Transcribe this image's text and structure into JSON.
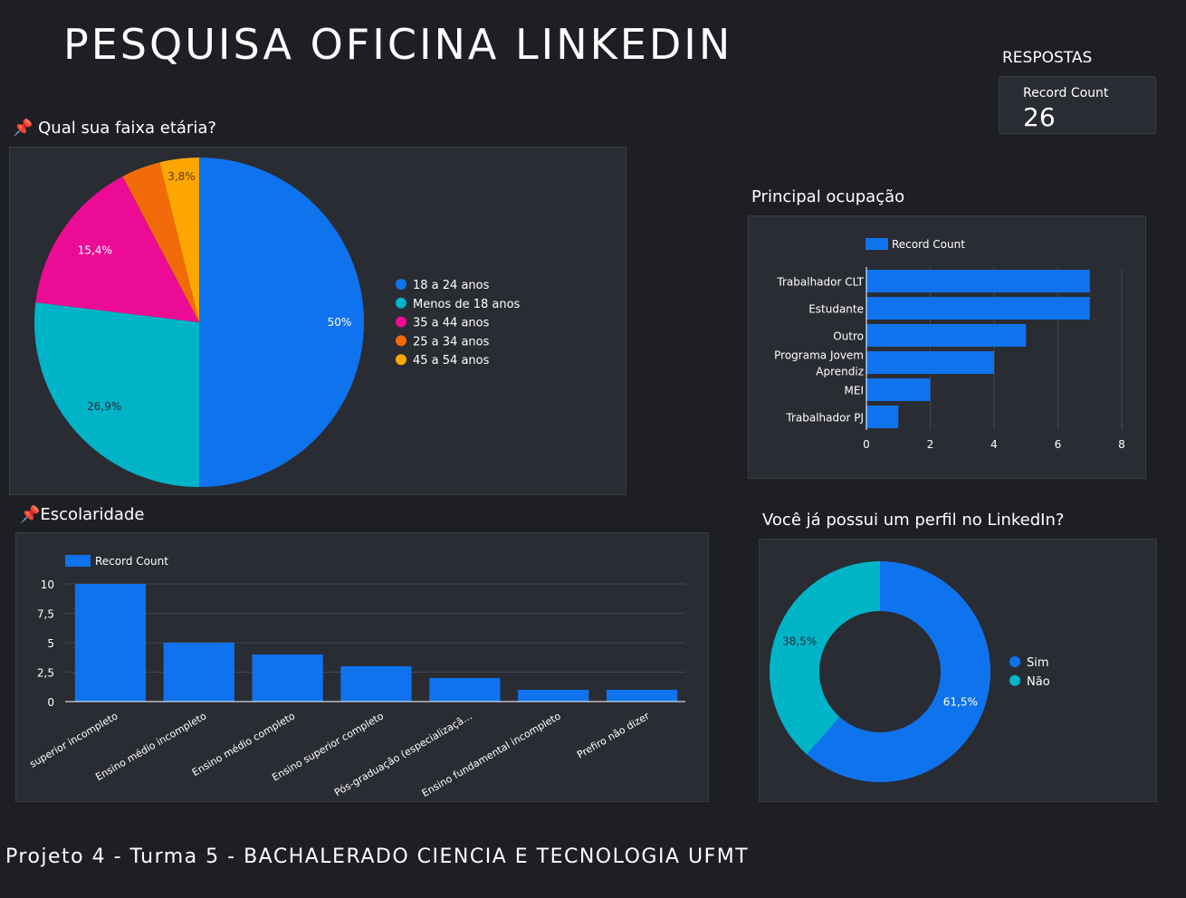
{
  "header": {
    "title": "PESQUISA OFICINA LINKEDIN"
  },
  "kpi": {
    "section_label": "RESPOSTAS",
    "metric_label": "Record Count",
    "value": "26"
  },
  "footer": {
    "text": "Projeto 4 - Turma 5  - BACHALERADO CIENCIA E TECNOLOGIA UFMT"
  },
  "chart_data": [
    {
      "id": "faixa-etaria",
      "type": "pie",
      "title": "📌 Qual sua faixa etária?",
      "legend_position": "right",
      "slices": [
        {
          "label": "18 a 24 anos",
          "value": 13,
          "pct_label": "50%",
          "color": "#0f73ee"
        },
        {
          "label": "Menos de 18 anos",
          "value": 7,
          "pct_label": "26,9%",
          "color": "#00b4c8"
        },
        {
          "label": "35 a 44 anos",
          "value": 4,
          "pct_label": "15,4%",
          "color": "#ec0b94"
        },
        {
          "label": "25 a 34 anos",
          "value": 1,
          "pct_label": "",
          "color": "#f06b08"
        },
        {
          "label": "45 a 54 anos",
          "value": 1,
          "pct_label": "3,8%",
          "color": "#ffa600"
        }
      ]
    },
    {
      "id": "ocupacao",
      "type": "bar",
      "orientation": "horizontal",
      "title": "Principal ocupação",
      "legend": [
        "Record Count"
      ],
      "legend_position": "top-left",
      "categories": [
        "Trabalhador CLT",
        "Estudante",
        "Outro",
        "Programa Jovem Aprendiz",
        "MEI",
        "Trabalhador PJ"
      ],
      "series": [
        {
          "name": "Record Count",
          "values": [
            7,
            7,
            5,
            4,
            2,
            1
          ],
          "color": "#0f73ee"
        }
      ],
      "xlim": [
        0,
        8
      ],
      "xticks": [
        "0",
        "2",
        "4",
        "6",
        "8"
      ],
      "grid": true
    },
    {
      "id": "escolaridade",
      "type": "bar",
      "orientation": "vertical",
      "title": "📌Escolaridade",
      "legend": [
        "Record Count"
      ],
      "legend_position": "top-left",
      "categories": [
        "superior incompleto",
        "Ensino médio incompleto",
        "Ensino médio completo",
        "Ensino superior completo",
        "Pós-graduação (especializaçã…",
        "Ensino fundamental incompleto",
        "Prefiro não dizer"
      ],
      "series": [
        {
          "name": "Record Count",
          "values": [
            10,
            5,
            4,
            3,
            2,
            1,
            1
          ],
          "color": "#0f73ee"
        }
      ],
      "ylim": [
        0,
        10
      ],
      "yticks": [
        "0",
        "2,5",
        "5",
        "7,5",
        "10"
      ],
      "grid": true
    },
    {
      "id": "perfil-linkedin",
      "type": "pie",
      "donut": true,
      "title": "Você já possui um perfil no LinkedIn?",
      "legend_position": "right",
      "slices": [
        {
          "label": "Sim",
          "value": 16,
          "pct_label": "61,5%",
          "color": "#0f73ee"
        },
        {
          "label": "Não",
          "value": 10,
          "pct_label": "38,5%",
          "color": "#00b4c8"
        }
      ]
    }
  ]
}
